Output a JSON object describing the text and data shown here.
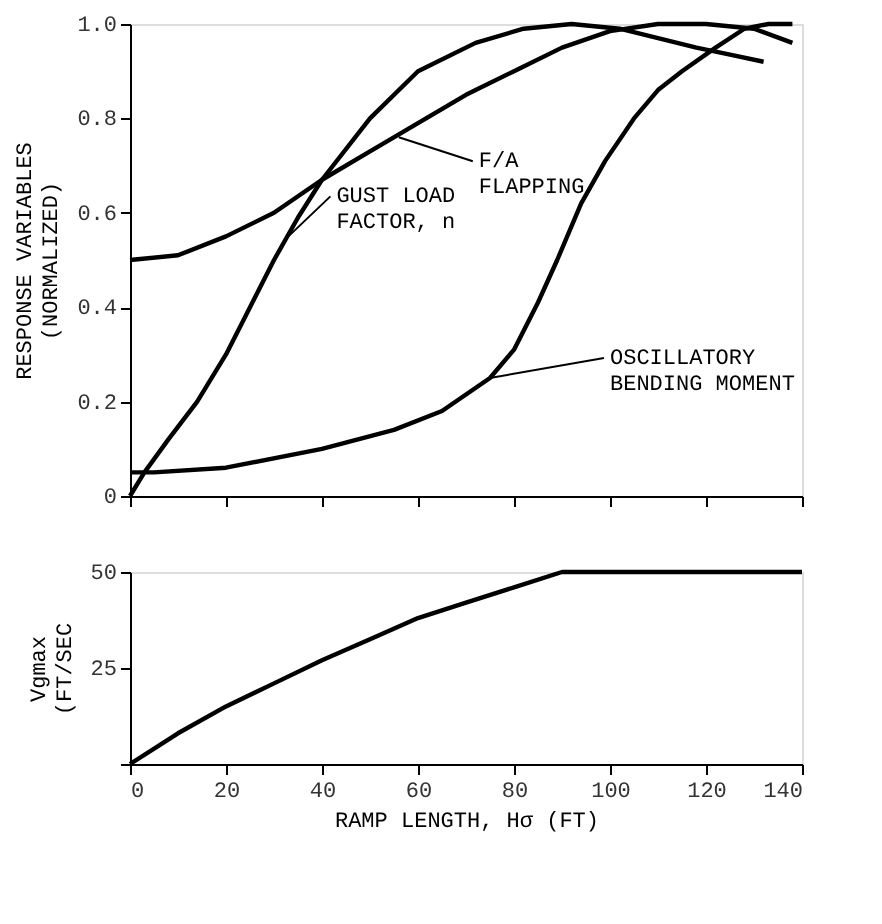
{
  "chart_data": [
    {
      "type": "line",
      "ylabel": "RESPONSE VARIABLES\n(NORMALIZED)",
      "xlim": [
        0,
        140
      ],
      "xticks": [
        0,
        20,
        40,
        60,
        80,
        100,
        120,
        140
      ],
      "ylim": [
        0,
        1
      ],
      "yticks": [
        0,
        0.2,
        0.4,
        0.6,
        0.8,
        {
          "value": 1,
          "label": "1.0"
        }
      ],
      "tick_labels": "y",
      "grid": false,
      "marker": "none",
      "line_style": "solid",
      "series": [
        {
          "color": "#000000",
          "x": [
            0,
            10,
            20,
            30,
            40,
            50,
            60,
            70,
            80,
            90,
            100,
            110,
            120,
            130,
            138
          ],
          "values": [
            0.5,
            0.51,
            0.55,
            0.6,
            0.67,
            0.73,
            0.79,
            0.85,
            0.9,
            0.95,
            0.985,
            1.0,
            1.0,
            0.99,
            0.96
          ]
        },
        {
          "color": "#000000",
          "x": [
            0,
            3,
            8,
            14,
            20,
            24,
            30,
            35,
            40,
            50,
            60,
            72,
            82,
            92,
            102,
            110,
            118,
            125,
            132
          ],
          "values": [
            0,
            0.05,
            0.12,
            0.2,
            0.3,
            0.38,
            0.5,
            0.59,
            0.67,
            0.8,
            0.9,
            0.96,
            0.99,
            1.0,
            0.99,
            0.97,
            0.95,
            0.935,
            0.92
          ]
        },
        {
          "color": "#000000",
          "x": [
            0,
            5,
            20,
            40,
            55,
            65,
            75,
            80,
            85,
            89,
            94,
            99,
            105,
            110,
            115,
            122,
            128,
            133,
            138
          ],
          "values": [
            0.05,
            0.05,
            0.06,
            0.1,
            0.14,
            0.18,
            0.25,
            0.31,
            0.41,
            0.5,
            0.62,
            0.71,
            0.8,
            0.86,
            0.9,
            0.95,
            0.99,
            1.0,
            1.0
          ]
        }
      ],
      "annotations": [
        {
          "text": "F/A\nFLAPPING",
          "x": 56,
          "y": 0.76
        },
        {
          "text": "GUST LOAD\nFACTOR, n",
          "x": 33,
          "y": 0.55
        },
        {
          "text": "OSCILLATORY\nBENDING MOMENT",
          "x": 75,
          "y": 0.25
        }
      ]
    },
    {
      "type": "line",
      "xlabel": "RAMP LENGTH, Hσ (FT)",
      "ylabel": "Vgmax\n(FT/SEC",
      "xlim": [
        0,
        140
      ],
      "xticks": [
        0,
        20,
        40,
        60,
        80,
        100,
        120,
        140
      ],
      "ylim": [
        0,
        50
      ],
      "yticks": [
        {
          "value": 0,
          "label": null
        },
        25,
        50
      ],
      "grid": false,
      "marker": "none",
      "line_style": "solid",
      "series": [
        {
          "color": "#000000",
          "x": [
            0,
            10,
            20,
            30,
            40,
            50,
            60,
            70,
            80,
            90,
            140
          ],
          "values": [
            0,
            8,
            15,
            21,
            27,
            32.5,
            38,
            42,
            46,
            50,
            50
          ]
        }
      ]
    }
  ]
}
